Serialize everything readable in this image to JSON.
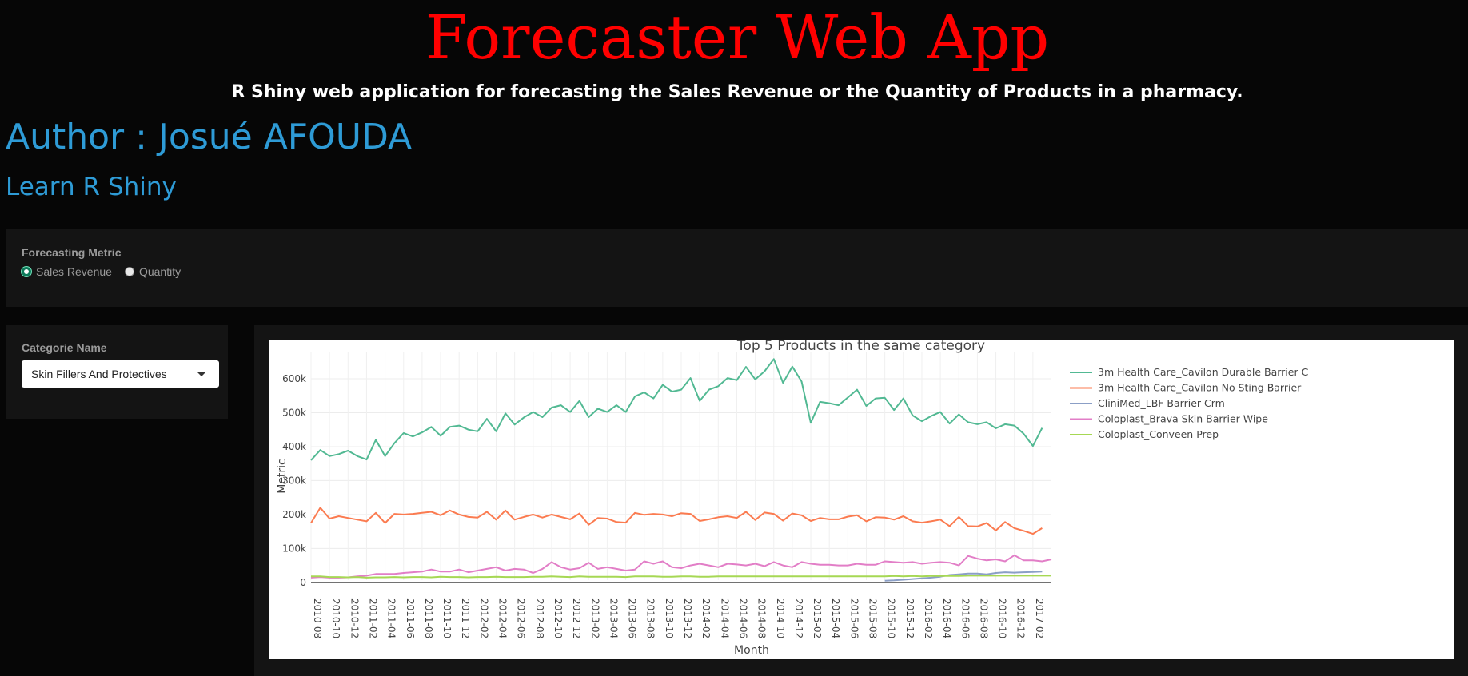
{
  "app": {
    "title": "Forecaster Web App",
    "subtitle": "R Shiny web application for forecasting the Sales Revenue or the Quantity of Products in a pharmacy.",
    "author": "Author : Josué AFOUDA",
    "learn_link": "Learn R Shiny"
  },
  "metric": {
    "label": "Forecasting Metric",
    "options": [
      "Sales Revenue",
      "Quantity"
    ],
    "selected": "Sales Revenue"
  },
  "category": {
    "label": "Categorie Name",
    "selected": "Skin Fillers And Protectives"
  },
  "colors": {
    "title": "#ff0000",
    "accent": "#2e9bd6",
    "panel": "#141414",
    "background": "#060606"
  },
  "chart_data": {
    "type": "line",
    "title": "Top 5 Products in the same category",
    "xlabel": "Month",
    "ylabel": "Metric",
    "ylim": [
      -5000,
      680000
    ],
    "yticks": [
      0,
      100000,
      200000,
      300000,
      400000,
      500000,
      600000
    ],
    "ytick_labels": [
      "0",
      "100k",
      "200k",
      "300k",
      "400k",
      "500k",
      "600k"
    ],
    "grid": true,
    "legend": "right",
    "x_tick_labels": [
      "2010-08",
      "2010-10",
      "2010-12",
      "2011-02",
      "2011-04",
      "2011-06",
      "2011-08",
      "2011-10",
      "2011-12",
      "2012-02",
      "2012-04",
      "2012-06",
      "2012-08",
      "2012-10",
      "2012-12",
      "2013-02",
      "2013-04",
      "2013-06",
      "2013-08",
      "2013-10",
      "2013-12",
      "2014-02",
      "2014-04",
      "2014-06",
      "2014-08",
      "2014-10",
      "2014-12",
      "2015-02",
      "2015-04",
      "2015-06",
      "2015-08",
      "2015-10",
      "2015-12",
      "2016-02",
      "2016-04",
      "2016-06",
      "2016-08",
      "2016-10",
      "2016-12",
      "2017-02"
    ],
    "x": [
      "2010-08",
      "2010-09",
      "2010-10",
      "2010-11",
      "2010-12",
      "2011-01",
      "2011-02",
      "2011-03",
      "2011-04",
      "2011-05",
      "2011-06",
      "2011-07",
      "2011-08",
      "2011-09",
      "2011-10",
      "2011-11",
      "2011-12",
      "2012-01",
      "2012-02",
      "2012-03",
      "2012-04",
      "2012-05",
      "2012-06",
      "2012-07",
      "2012-08",
      "2012-09",
      "2012-10",
      "2012-11",
      "2012-12",
      "2013-01",
      "2013-02",
      "2013-03",
      "2013-04",
      "2013-05",
      "2013-06",
      "2013-07",
      "2013-08",
      "2013-09",
      "2013-10",
      "2013-11",
      "2013-12",
      "2014-01",
      "2014-02",
      "2014-03",
      "2014-04",
      "2014-05",
      "2014-06",
      "2014-07",
      "2014-08",
      "2014-09",
      "2014-10",
      "2014-11",
      "2014-12",
      "2015-01",
      "2015-02",
      "2015-03",
      "2015-04",
      "2015-05",
      "2015-06",
      "2015-07",
      "2015-08",
      "2015-09",
      "2015-10",
      "2015-11",
      "2015-12",
      "2016-01",
      "2016-02",
      "2016-03",
      "2016-04",
      "2016-05",
      "2016-06",
      "2016-07",
      "2016-08",
      "2016-09",
      "2016-10",
      "2016-11",
      "2016-12",
      "2017-01",
      "2017-02",
      "2017-03",
      "2017-04"
    ],
    "series": [
      {
        "name": "3m Health Care_Cavilon Durable Barrier C",
        "color": "#52b993",
        "values": [
          360000,
          390000,
          372000,
          378000,
          388000,
          372000,
          362000,
          420000,
          372000,
          410000,
          440000,
          430000,
          442000,
          458000,
          432000,
          458000,
          462000,
          450000,
          445000,
          482000,
          445000,
          498000,
          465000,
          486000,
          502000,
          487000,
          515000,
          522000,
          502000,
          535000,
          487000,
          512000,
          502000,
          522000,
          502000,
          548000,
          560000,
          542000,
          582000,
          562000,
          568000,
          602000,
          535000,
          568000,
          578000,
          602000,
          596000,
          635000,
          598000,
          622000,
          658000,
          588000,
          636000,
          592000,
          470000,
          532000,
          528000,
          522000,
          545000,
          568000,
          520000,
          542000,
          544000,
          508000,
          542000,
          492000,
          475000,
          490000,
          502000,
          468000,
          495000,
          472000,
          466000,
          472000,
          454000,
          466000,
          462000,
          438000,
          402000,
          455000,
          0
        ]
      },
      {
        "name": "3m Health Care_Cavilon No Sting Barrier",
        "color": "#fb7b50",
        "values": [
          175000,
          220000,
          188000,
          195000,
          190000,
          185000,
          180000,
          205000,
          175000,
          202000,
          200000,
          202000,
          205000,
          208000,
          198000,
          212000,
          200000,
          193000,
          191000,
          208000,
          185000,
          212000,
          185000,
          193000,
          200000,
          191000,
          200000,
          193000,
          186000,
          203000,
          170000,
          190000,
          188000,
          178000,
          176000,
          205000,
          199000,
          202000,
          200000,
          195000,
          204000,
          202000,
          181000,
          186000,
          192000,
          195000,
          190000,
          208000,
          184000,
          206000,
          202000,
          182000,
          203000,
          198000,
          181000,
          190000,
          186000,
          186000,
          194000,
          198000,
          180000,
          192000,
          191000,
          185000,
          195000,
          180000,
          176000,
          180000,
          185000,
          166000,
          193000,
          166000,
          165000,
          175000,
          153000,
          178000,
          160000,
          152000,
          143000,
          160000,
          0
        ]
      },
      {
        "name": "CliniMed_LBF Barrier Crm",
        "color": "#8b9fc6",
        "values": [
          null,
          null,
          null,
          null,
          null,
          null,
          null,
          null,
          null,
          null,
          null,
          null,
          null,
          null,
          null,
          null,
          null,
          null,
          null,
          null,
          null,
          null,
          null,
          null,
          null,
          null,
          null,
          null,
          null,
          null,
          null,
          null,
          null,
          null,
          null,
          null,
          null,
          null,
          null,
          null,
          null,
          null,
          null,
          null,
          null,
          null,
          null,
          null,
          null,
          null,
          null,
          null,
          null,
          null,
          null,
          null,
          null,
          null,
          null,
          null,
          null,
          null,
          5000,
          6000,
          8000,
          10000,
          12000,
          14000,
          17000,
          22000,
          24000,
          26000,
          26000,
          24000,
          28000,
          30000,
          29000,
          30000,
          31000,
          32000,
          0
        ]
      },
      {
        "name": "Coloplast_Brava Skin Barrier Wipe",
        "color": "#e27ec7",
        "values": [
          14000,
          16000,
          14000,
          14000,
          15000,
          18000,
          20000,
          25000,
          25000,
          25000,
          28000,
          30000,
          32000,
          38000,
          32000,
          32000,
          38000,
          30000,
          35000,
          40000,
          45000,
          35000,
          40000,
          38000,
          28000,
          40000,
          60000,
          45000,
          38000,
          42000,
          58000,
          40000,
          45000,
          40000,
          35000,
          38000,
          62000,
          55000,
          62000,
          45000,
          42000,
          50000,
          55000,
          50000,
          45000,
          55000,
          53000,
          50000,
          55000,
          48000,
          60000,
          50000,
          45000,
          60000,
          55000,
          52000,
          52000,
          50000,
          50000,
          55000,
          52000,
          52000,
          62000,
          60000,
          58000,
          60000,
          55000,
          58000,
          60000,
          58000,
          50000,
          78000,
          70000,
          65000,
          68000,
          62000,
          80000,
          65000,
          65000,
          62000,
          68000
        ]
      },
      {
        "name": "Coloplast_Conveen Prep",
        "color": "#a6d854",
        "values": [
          18000,
          18000,
          16000,
          16000,
          15000,
          16000,
          14000,
          15000,
          15000,
          16000,
          15000,
          16000,
          16000,
          15000,
          17000,
          16000,
          16000,
          15000,
          16000,
          16000,
          17000,
          16000,
          16000,
          16000,
          17000,
          17000,
          18000,
          17000,
          16000,
          18000,
          17000,
          17000,
          17000,
          17000,
          16000,
          18000,
          18000,
          18000,
          17000,
          17000,
          18000,
          18000,
          17000,
          17000,
          18000,
          18000,
          18000,
          18000,
          18000,
          18000,
          18000,
          18000,
          18000,
          18000,
          18000,
          18000,
          18000,
          18000,
          18000,
          18000,
          18000,
          18000,
          18000,
          19000,
          18000,
          19000,
          18000,
          19000,
          19000,
          19000,
          19000,
          20000,
          20000,
          20000,
          20000,
          20000,
          20000,
          20000,
          20000,
          20000,
          20000
        ]
      }
    ]
  }
}
